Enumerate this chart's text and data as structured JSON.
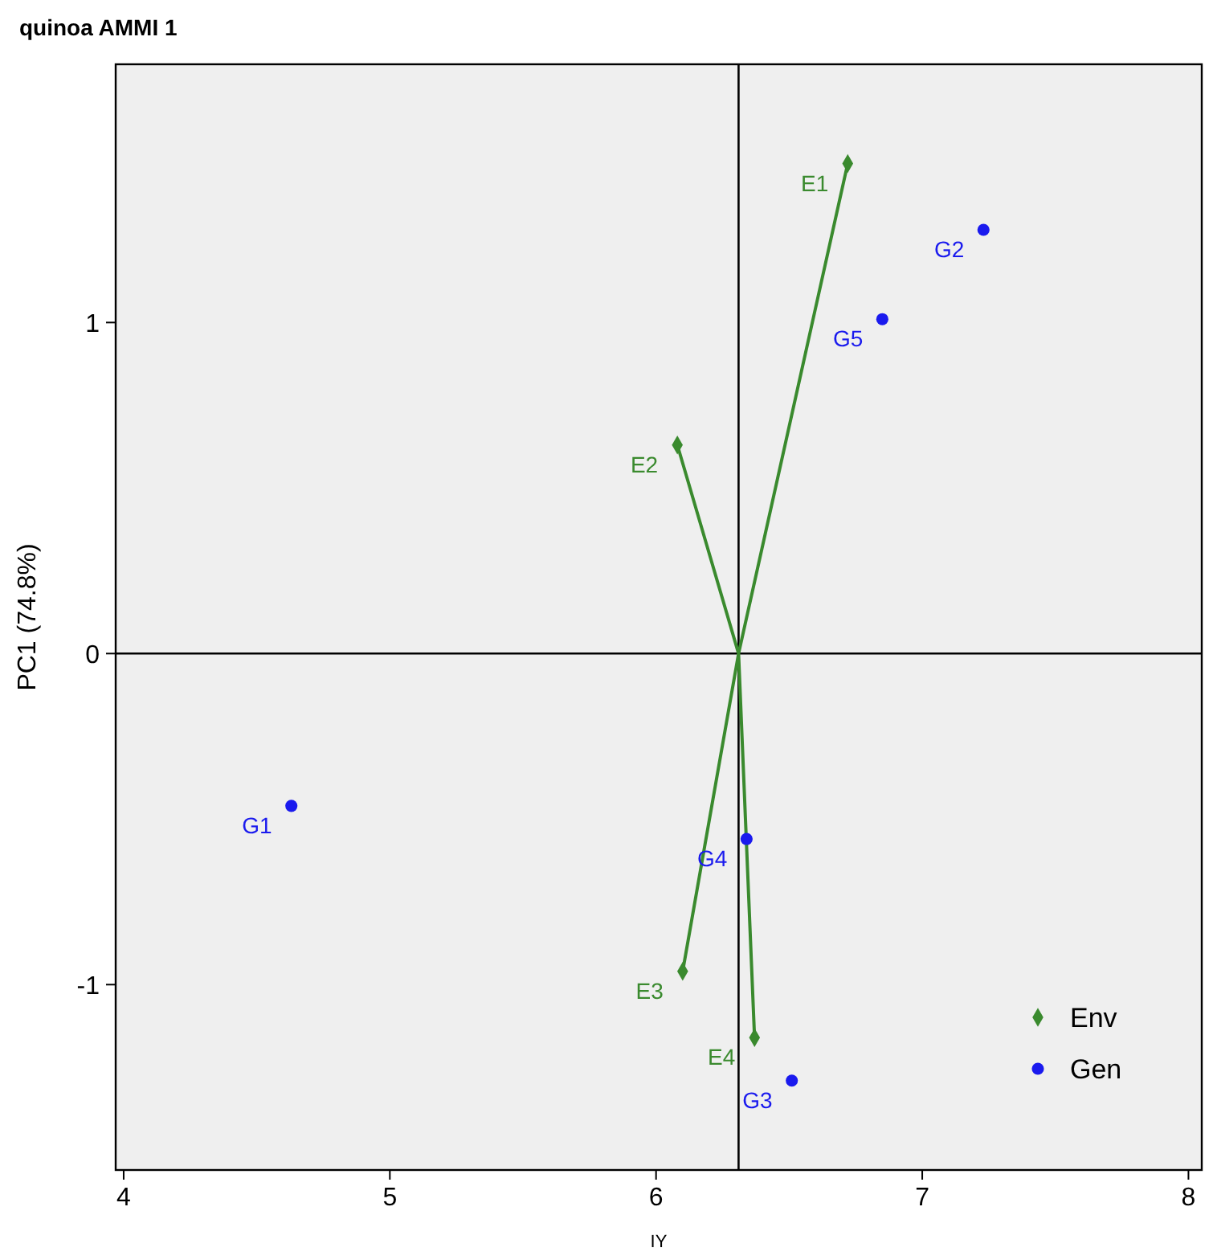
{
  "chart_data": {
    "type": "scatter",
    "title": "quinoa AMMI 1",
    "xlabel": "IY",
    "ylabel": "PC1 (74.8%)",
    "xlim": [
      3.97,
      8.05
    ],
    "ylim": [
      -1.56,
      1.78
    ],
    "xticks": [
      4,
      5,
      6,
      7,
      8
    ],
    "yticks": [
      -1,
      0,
      1
    ],
    "series": [
      {
        "type": "line",
        "color": "#3a8a2e",
        "x": [
          6.31,
          6.72,
          6.31,
          6.08,
          6.31,
          6.1,
          6.31,
          6.37
        ],
        "values": [
          0,
          1.48,
          0,
          0.63,
          0,
          -0.96,
          0,
          -1.16
        ],
        "marker": "none"
      },
      {
        "name": "Env",
        "color": "#3a8a2e",
        "marker": "diamond",
        "x": [
          6.72,
          6.08,
          6.1,
          6.37
        ],
        "values": [
          1.48,
          0.63,
          -0.96,
          -1.16
        ]
      },
      {
        "name": "Gen",
        "color": "#1a1aee",
        "marker": "circle",
        "x": [
          4.63,
          7.23,
          6.51,
          6.34,
          6.85
        ],
        "values": [
          -0.46,
          1.28,
          -1.29,
          -0.56,
          1.01
        ]
      }
    ],
    "annotations": [
      {
        "text": "E1",
        "x": 6.72,
        "y": 1.48
      },
      {
        "text": "E2",
        "x": 6.08,
        "y": 0.63
      },
      {
        "text": "E3",
        "x": 6.1,
        "y": -0.96
      },
      {
        "text": "E4",
        "x": 6.37,
        "y": -1.16
      },
      {
        "text": "G1",
        "x": 4.63,
        "y": -0.46
      },
      {
        "text": "G2",
        "x": 7.23,
        "y": 1.28
      },
      {
        "text": "G3",
        "x": 6.51,
        "y": -1.29
      },
      {
        "text": "G4",
        "x": 6.34,
        "y": -0.56
      },
      {
        "text": "G5",
        "x": 6.85,
        "y": 1.01
      }
    ],
    "ref_lines": [
      {
        "axis": "x",
        "value": 6.31,
        "color": "#000000"
      },
      {
        "axis": "y",
        "value": 0,
        "color": "#000000"
      }
    ],
    "legend": "bottom right",
    "grid": false
  }
}
